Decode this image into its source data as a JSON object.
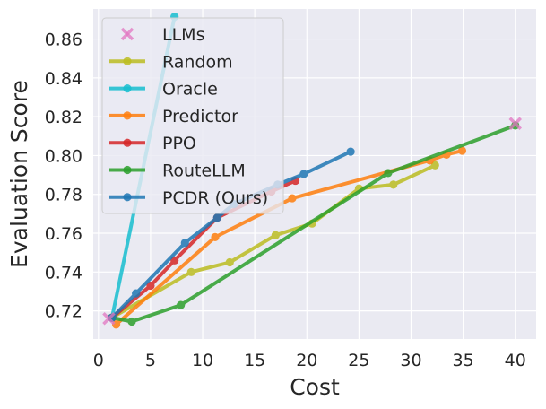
{
  "chart_data": {
    "type": "line",
    "title": "",
    "xlabel": "Cost",
    "ylabel": "Evaluation Score",
    "xlim": [
      -0.5,
      42
    ],
    "ylim": [
      0.7055,
      0.8755
    ],
    "xticks": [
      0,
      5,
      10,
      15,
      20,
      25,
      30,
      35,
      40
    ],
    "yticks": [
      0.72,
      0.74,
      0.76,
      0.78,
      0.8,
      0.82,
      0.84,
      0.86
    ],
    "ytick_labels": [
      "0.72",
      "0.74",
      "0.76",
      "0.78",
      "0.80",
      "0.82",
      "0.84",
      "0.86"
    ],
    "legend_position": "upper-left",
    "grid": true,
    "llms": {
      "name": "LLMs",
      "color": "#e377c2",
      "marker": "x",
      "points": [
        [
          1.0,
          0.716
        ],
        [
          40.0,
          0.8165
        ]
      ]
    },
    "series": [
      {
        "name": "Random",
        "color": "#bcbd22",
        "x": [
          1.3,
          8.9,
          12.6,
          17.0,
          20.5,
          25.0,
          28.3,
          32.3
        ],
        "y": [
          0.7165,
          0.74,
          0.745,
          0.759,
          0.765,
          0.783,
          0.785,
          0.795
        ]
      },
      {
        "name": "Oracle",
        "color": "#17becf",
        "x": [
          1.3,
          7.3
        ],
        "y": [
          0.7165,
          0.8715
        ]
      },
      {
        "name": "Predictor",
        "color": "#ff7f0e",
        "x": [
          1.7,
          11.2,
          18.6,
          31.8,
          33.4,
          34.9
        ],
        "y": [
          0.713,
          0.758,
          0.778,
          0.7975,
          0.8005,
          0.8025
        ]
      },
      {
        "name": "PPO",
        "color": "#d62728",
        "x": [
          1.3,
          5.0,
          7.3,
          11.4,
          16.6,
          18.9
        ],
        "y": [
          0.7165,
          0.733,
          0.746,
          0.768,
          0.7815,
          0.787
        ]
      },
      {
        "name": "RouteLLM",
        "color": "#2ca02c",
        "x": [
          1.3,
          3.2,
          7.9,
          27.8,
          40.0
        ],
        "y": [
          0.7165,
          0.7145,
          0.723,
          0.791,
          0.8155
        ]
      },
      {
        "name": "PCDR (Ours)",
        "color": "#1f77b4",
        "x": [
          1.3,
          3.6,
          8.3,
          11.4,
          13.0,
          17.2,
          19.7,
          24.2
        ],
        "y": [
          0.7165,
          0.729,
          0.755,
          0.768,
          0.775,
          0.785,
          0.7905,
          0.802
        ]
      }
    ]
  }
}
